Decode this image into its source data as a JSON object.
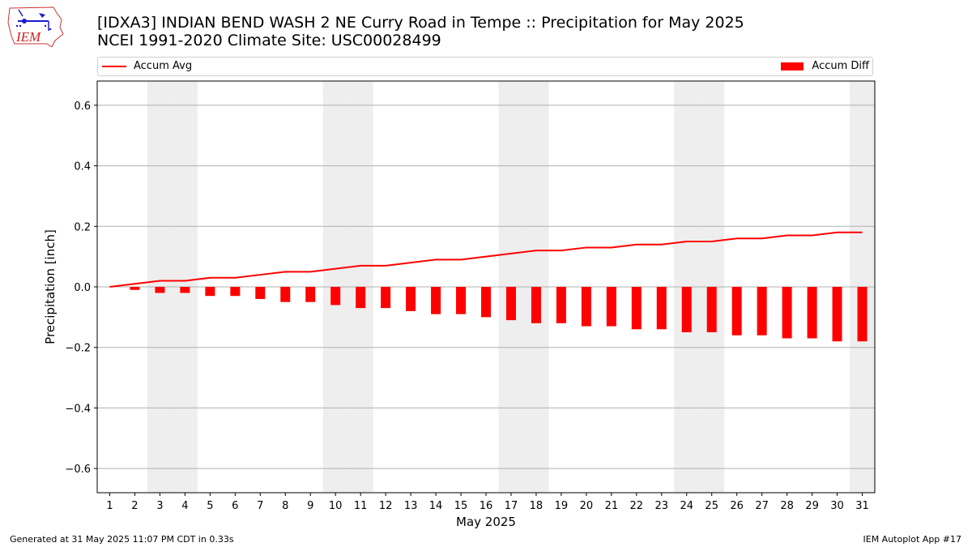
{
  "header": {
    "title_line1": "[IDXA3] INDIAN BEND WASH 2 NE Curry Road in Tempe :: Precipitation for May 2025",
    "title_line2": "NCEI 1991-2020 Climate Site: USC00028499",
    "logo_text": "IEM"
  },
  "legend": {
    "avg_label": "Accum Avg",
    "diff_label": "Accum Diff"
  },
  "footer": {
    "left": "Generated at 31 May 2025 11:07 PM CDT in 0.33s",
    "right": "IEM Autoplot App #17"
  },
  "colors": {
    "series": "#ff0000",
    "weekend_shade": "#eeeeee",
    "grid": "#b0b0b0"
  },
  "chart_data": {
    "type": "bar",
    "xlabel": "May 2025",
    "ylabel": "Precipitation [inch]",
    "ylim": [
      -0.68,
      0.68
    ],
    "yticks": [
      -0.6,
      -0.4,
      -0.2,
      0.0,
      0.2,
      0.4,
      0.6
    ],
    "ytick_labels": [
      "−0.6",
      "−0.4",
      "−0.2",
      "0.0",
      "0.2",
      "0.4",
      "0.6"
    ],
    "categories": [
      "1",
      "2",
      "3",
      "4",
      "5",
      "6",
      "7",
      "8",
      "9",
      "10",
      "11",
      "12",
      "13",
      "14",
      "15",
      "16",
      "17",
      "18",
      "19",
      "20",
      "21",
      "22",
      "23",
      "24",
      "25",
      "26",
      "27",
      "28",
      "29",
      "30",
      "31"
    ],
    "xlim": [
      0.5,
      31.5
    ],
    "grid": "horizontal",
    "legend_placement": "top",
    "shaded_days": [
      3,
      4,
      10,
      11,
      17,
      18,
      24,
      25,
      31
    ],
    "series": [
      {
        "name": "Accum Avg",
        "kind": "line",
        "values": [
          0.0,
          0.01,
          0.02,
          0.02,
          0.03,
          0.03,
          0.04,
          0.05,
          0.05,
          0.06,
          0.07,
          0.07,
          0.08,
          0.09,
          0.09,
          0.1,
          0.11,
          0.12,
          0.12,
          0.13,
          0.13,
          0.14,
          0.14,
          0.15,
          0.15,
          0.16,
          0.16,
          0.17,
          0.17,
          0.18,
          0.18
        ]
      },
      {
        "name": "Accum Diff",
        "kind": "bar",
        "values": [
          0.0,
          -0.01,
          -0.02,
          -0.02,
          -0.03,
          -0.03,
          -0.04,
          -0.05,
          -0.05,
          -0.06,
          -0.07,
          -0.07,
          -0.08,
          -0.09,
          -0.09,
          -0.1,
          -0.11,
          -0.12,
          -0.12,
          -0.13,
          -0.13,
          -0.14,
          -0.14,
          -0.15,
          -0.15,
          -0.16,
          -0.16,
          -0.17,
          -0.17,
          -0.18,
          -0.18
        ]
      }
    ]
  }
}
